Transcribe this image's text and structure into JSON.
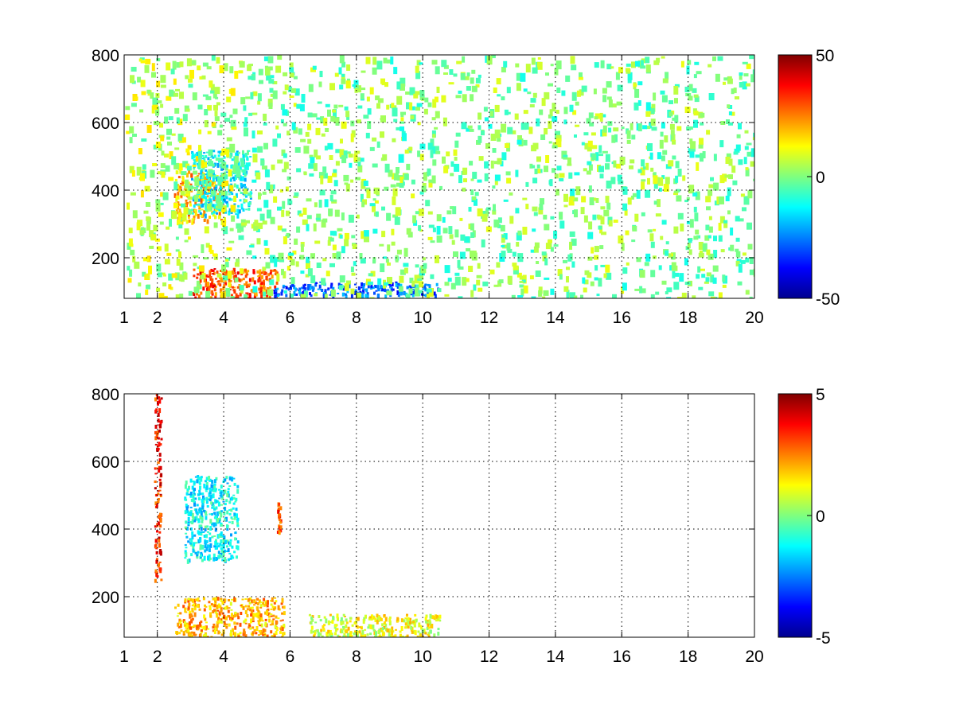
{
  "chart_data": [
    {
      "type": "heatmap",
      "title": "",
      "xlabel": "",
      "ylabel": "",
      "xlim": [
        1,
        20
      ],
      "ylim": [
        80,
        800
      ],
      "xticks": [
        1,
        2,
        4,
        6,
        8,
        10,
        12,
        14,
        16,
        18,
        20
      ],
      "yticks": [
        200,
        400,
        600,
        800
      ],
      "grid": true,
      "colormap": "jet",
      "colorbar": {
        "min": -50,
        "max": 50,
        "ticks": [
          50,
          0,
          -50
        ]
      },
      "regions": [
        {
          "x": [
            2.5,
            4.0
          ],
          "y": [
            310,
            460
          ],
          "value": 20,
          "angle_deg": -35
        },
        {
          "x": [
            3.0,
            4.8
          ],
          "y": [
            330,
            520
          ],
          "value": -12,
          "angle_deg": -35
        },
        {
          "x": [
            3.0,
            5.6
          ],
          "y": [
            80,
            170
          ],
          "value": 30
        },
        {
          "x": [
            5.5,
            10.5
          ],
          "y": [
            90,
            130
          ],
          "value": -28
        },
        {
          "x": [
            1.0,
            4.5
          ],
          "y": [
            80,
            800
          ],
          "value": 5
        },
        {
          "x": [
            4.5,
            20.0
          ],
          "y": [
            80,
            800
          ],
          "value": 0
        }
      ]
    },
    {
      "type": "heatmap",
      "title": "",
      "xlabel": "",
      "ylabel": "",
      "xlim": [
        1,
        20
      ],
      "ylim": [
        80,
        800
      ],
      "xticks": [
        1,
        2,
        4,
        6,
        8,
        10,
        12,
        14,
        16,
        18,
        20
      ],
      "yticks": [
        200,
        400,
        600,
        800
      ],
      "grid": true,
      "colormap": "jet",
      "colorbar": {
        "min": -5,
        "max": 5,
        "ticks": [
          5,
          0,
          -5
        ]
      },
      "regions": [
        {
          "x": [
            2.8,
            4.4
          ],
          "y": [
            310,
            560
          ],
          "value": -1.2,
          "angle_deg": -45
        },
        {
          "x": [
            1.9,
            2.1
          ],
          "y": [
            250,
            800
          ],
          "value": 3.5
        },
        {
          "x": [
            2.5,
            5.8
          ],
          "y": [
            80,
            200
          ],
          "value": 2.0
        },
        {
          "x": [
            6.5,
            10.5
          ],
          "y": [
            80,
            150
          ],
          "value": 1.0
        },
        {
          "x": [
            5.6,
            5.7
          ],
          "y": [
            390,
            490
          ],
          "value": 3.0
        }
      ]
    }
  ]
}
